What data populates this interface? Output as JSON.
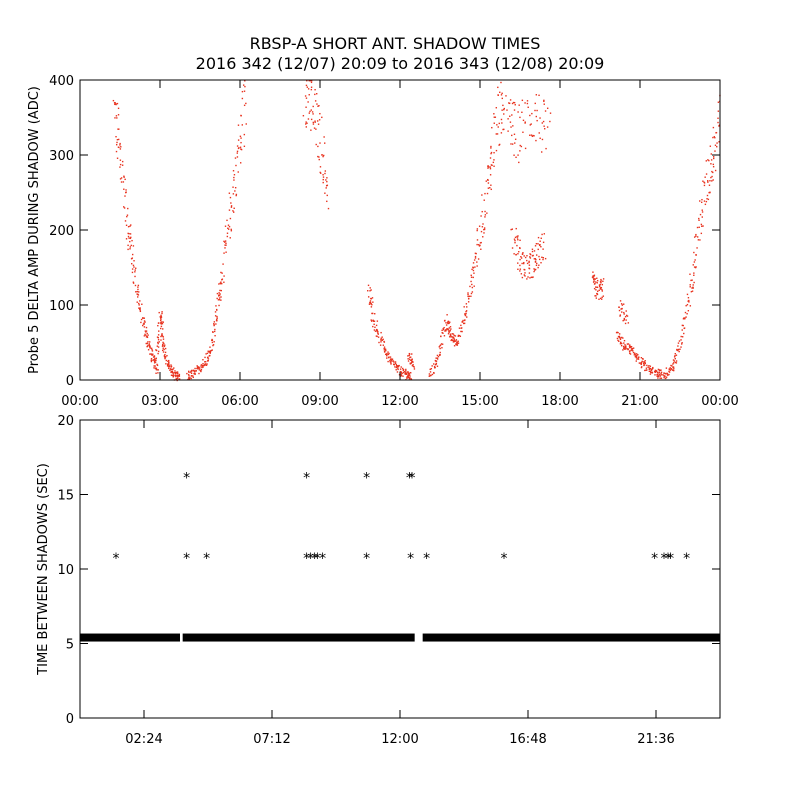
{
  "title": {
    "line1": "RBSP-A SHORT ANT. SHADOW TIMES",
    "line2": "2016 342 (12/07) 20:09 to 2016 343 (12/08) 20:09"
  },
  "colors": {
    "top_points": "#e8321e",
    "bottom_points": "#000000",
    "axis": "#000000"
  },
  "chart_data": [
    {
      "type": "scatter",
      "name": "delta-amp",
      "ylabel": "Probe 5 DELTA AMP DURING SHADOW (ADC)",
      "xlabel": "",
      "x_units": "hours",
      "xlim": [
        0,
        24
      ],
      "ylim": [
        0,
        400
      ],
      "x_ticks": [
        {
          "value": 0,
          "label": "00:00"
        },
        {
          "value": 3,
          "label": "03:00"
        },
        {
          "value": 6,
          "label": "06:00"
        },
        {
          "value": 9,
          "label": "09:00"
        },
        {
          "value": 12,
          "label": "12:00"
        },
        {
          "value": 15,
          "label": "15:00"
        },
        {
          "value": 18,
          "label": "18:00"
        },
        {
          "value": 21,
          "label": "21:00"
        },
        {
          "value": 24,
          "label": "00:00"
        }
      ],
      "y_ticks": [
        {
          "value": 0,
          "label": "0"
        },
        {
          "value": 100,
          "label": "100"
        },
        {
          "value": 200,
          "label": "200"
        },
        {
          "value": 300,
          "label": "300"
        },
        {
          "value": 400,
          "label": "400"
        }
      ],
      "segments": [
        {
          "x": [
            1.25,
            1.5,
            1.75,
            2.0,
            2.25,
            2.5,
            2.7,
            2.9
          ],
          "y": [
            360,
            300,
            210,
            150,
            90,
            55,
            30,
            12
          ]
        },
        {
          "x": [
            2.85,
            3.0,
            3.1,
            3.3,
            3.5,
            3.7
          ],
          "y": [
            30,
            90,
            45,
            20,
            8,
            2
          ]
        },
        {
          "x": [
            4.0,
            4.3,
            4.6,
            4.9,
            5.1,
            5.3,
            5.6,
            5.9,
            6.2
          ],
          "y": [
            6,
            10,
            22,
            40,
            90,
            140,
            220,
            300,
            380
          ]
        },
        {
          "x": [
            8.4,
            8.7,
            9.0,
            9.3
          ],
          "y": [
            390,
            360,
            320,
            240
          ]
        },
        {
          "x": [
            10.8,
            11.0,
            11.3,
            11.6,
            11.9,
            12.2,
            12.4
          ],
          "y": [
            120,
            80,
            50,
            28,
            15,
            8,
            5
          ]
        },
        {
          "x": [
            12.3,
            12.5
          ],
          "y": [
            35,
            20
          ]
        },
        {
          "x": [
            13.1,
            13.4,
            13.7,
            13.9,
            14.1,
            14.4,
            14.7,
            15.0,
            15.3,
            15.6,
            15.9
          ],
          "y": [
            5,
            30,
            80,
            60,
            50,
            85,
            140,
            200,
            270,
            340,
            380
          ]
        },
        {
          "x": [
            16.2,
            16.5,
            16.8,
            17.1,
            17.4
          ],
          "y": [
            200,
            160,
            150,
            165,
            180
          ]
        },
        {
          "x": [
            16.0,
            16.4,
            17.0,
            17.6
          ],
          "y": [
            340,
            330,
            360,
            320
          ]
        },
        {
          "x": [
            19.2,
            19.4,
            19.6
          ],
          "y": [
            130,
            120,
            125
          ]
        },
        {
          "x": [
            20.1,
            20.4,
            20.7,
            21.0,
            21.3,
            21.6,
            21.9,
            22.2,
            22.5,
            22.8,
            23.1,
            23.4,
            23.7,
            23.95
          ],
          "y": [
            60,
            45,
            40,
            25,
            15,
            10,
            8,
            18,
            50,
            110,
            180,
            250,
            300,
            360
          ]
        },
        {
          "x": [
            20.2,
            20.5
          ],
          "y": [
            100,
            80
          ]
        }
      ]
    },
    {
      "type": "scatter",
      "name": "time-between-shadows",
      "ylabel": "TIME BETWEEN SHADOWS (SEC)",
      "xlabel": "",
      "x_units": "hours",
      "xlim": [
        0,
        24
      ],
      "ylim": [
        0,
        20
      ],
      "x_ticks": [
        {
          "value": 2.4,
          "label": "02:24"
        },
        {
          "value": 7.2,
          "label": "07:12"
        },
        {
          "value": 12.0,
          "label": "12:00"
        },
        {
          "value": 16.8,
          "label": "16:48"
        },
        {
          "value": 21.6,
          "label": "21:36"
        }
      ],
      "y_ticks": [
        {
          "value": 0,
          "label": "0"
        },
        {
          "value": 5,
          "label": "5"
        },
        {
          "value": 10,
          "label": "10"
        },
        {
          "value": 15,
          "label": "15"
        },
        {
          "value": 20,
          "label": "20"
        }
      ],
      "baseline": {
        "y": 5.4,
        "x_start": 0,
        "x_end": 24,
        "gaps": [
          [
            3.75,
            3.85
          ],
          [
            12.55,
            12.85
          ]
        ]
      },
      "points": [
        {
          "x": 1.35,
          "y": 10.8
        },
        {
          "x": 4.0,
          "y": 16.2
        },
        {
          "x": 4.0,
          "y": 10.8
        },
        {
          "x": 4.75,
          "y": 10.8
        },
        {
          "x": 8.5,
          "y": 16.2
        },
        {
          "x": 8.5,
          "y": 10.8
        },
        {
          "x": 8.65,
          "y": 10.8
        },
        {
          "x": 8.8,
          "y": 10.8
        },
        {
          "x": 8.9,
          "y": 10.8
        },
        {
          "x": 9.1,
          "y": 10.8
        },
        {
          "x": 10.75,
          "y": 16.2
        },
        {
          "x": 10.75,
          "y": 10.8
        },
        {
          "x": 12.35,
          "y": 16.2
        },
        {
          "x": 12.45,
          "y": 16.2
        },
        {
          "x": 12.4,
          "y": 10.8
        },
        {
          "x": 13.0,
          "y": 10.8
        },
        {
          "x": 15.9,
          "y": 10.8
        },
        {
          "x": 21.55,
          "y": 10.8
        },
        {
          "x": 21.9,
          "y": 10.8
        },
        {
          "x": 22.05,
          "y": 10.8
        },
        {
          "x": 22.15,
          "y": 10.8
        },
        {
          "x": 22.75,
          "y": 10.8
        }
      ]
    }
  ]
}
